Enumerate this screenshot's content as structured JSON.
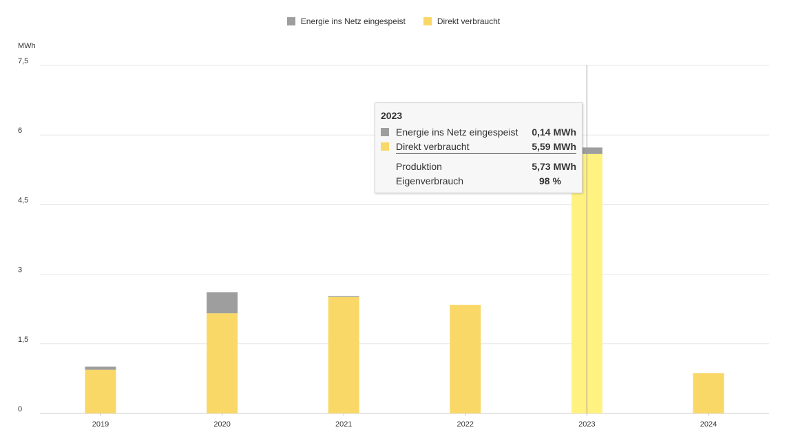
{
  "legend": [
    {
      "label": "Energie ins Netz eingespeist",
      "color": "#9e9e9e"
    },
    {
      "label": "Direkt verbraucht",
      "color": "#f9d868"
    }
  ],
  "unit_label": "MWh",
  "chart_data": {
    "type": "bar",
    "stacked": true,
    "categories": [
      "2019",
      "2020",
      "2021",
      "2022",
      "2023",
      "2024"
    ],
    "series": [
      {
        "name": "Direkt verbraucht",
        "color": "#f9d868",
        "values": [
          0.94,
          2.16,
          2.51,
          2.34,
          5.59,
          0.87
        ]
      },
      {
        "name": "Energie ins Netz eingespeist",
        "color": "#9e9e9e",
        "values": [
          0.07,
          0.45,
          0.02,
          0.0,
          0.14,
          0.0
        ]
      }
    ],
    "ylabel": "MWh",
    "ylim": [
      0,
      7.5
    ],
    "yticks": [
      "0",
      "1,5",
      "3",
      "4,5",
      "6",
      "7,5"
    ],
    "ytick_values": [
      0,
      1.5,
      3,
      4.5,
      6,
      7.5
    ],
    "grid": true,
    "legend_position": "top-center",
    "highlighted_category": "2023",
    "highlight_color": "#fff280"
  },
  "tooltip": {
    "title": "2023",
    "rows": [
      {
        "label": "Energie ins Netz eingespeist",
        "value": "0,14",
        "unit": "MWh",
        "color": "#9e9e9e"
      },
      {
        "label": "Direkt verbraucht",
        "value": "5,59",
        "unit": "MWh",
        "color": "#f9d868"
      }
    ],
    "summary": [
      {
        "label": "Produktion",
        "value": "5,73",
        "unit": "MWh"
      },
      {
        "label": "Eigenverbrauch",
        "value": "98",
        "unit": "%"
      }
    ]
  }
}
